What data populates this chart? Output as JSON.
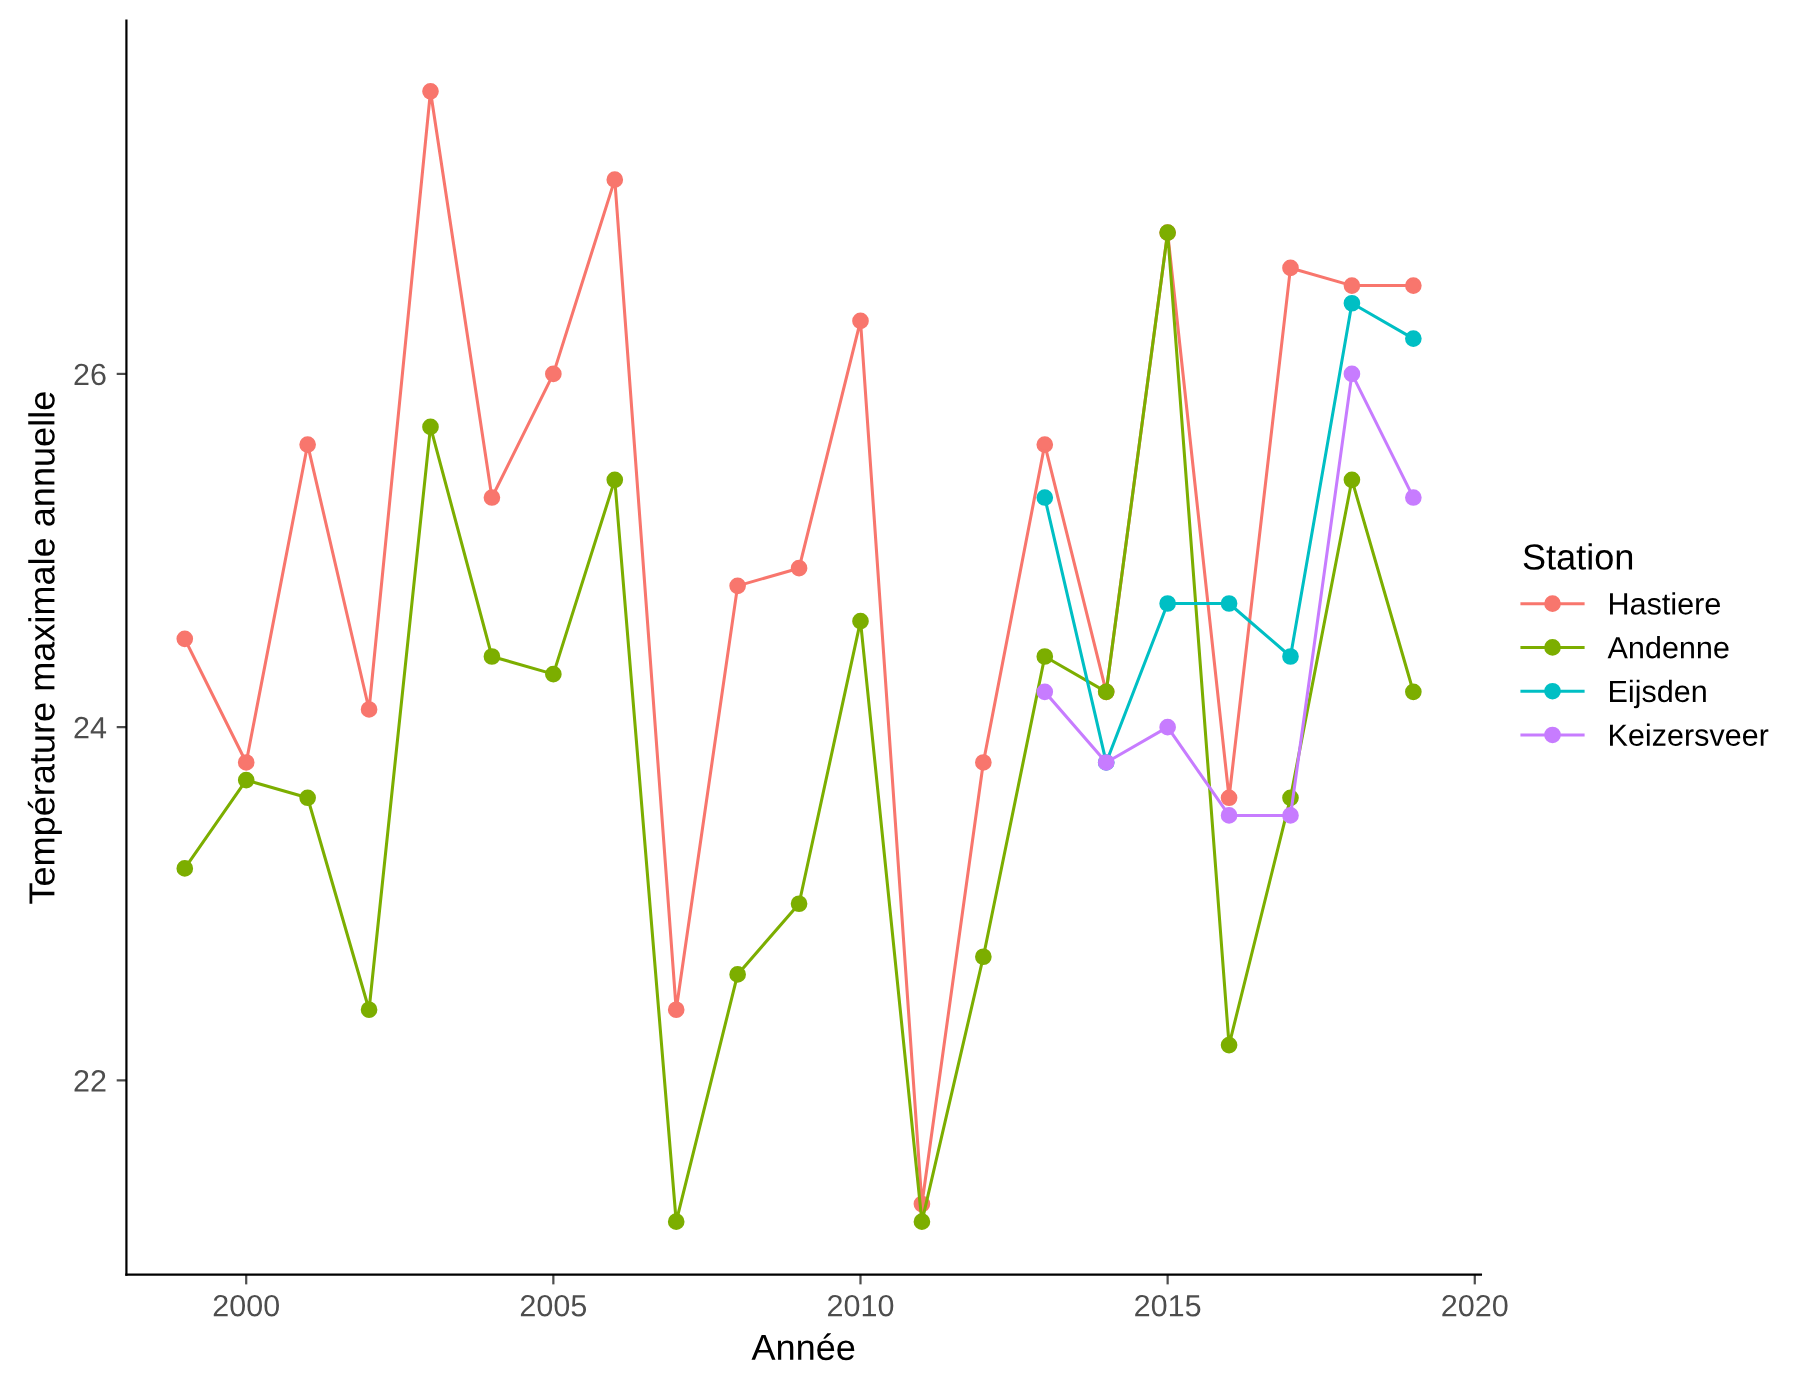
{
  "chart_data": {
    "type": "line",
    "xlabel": "Année",
    "ylabel": "Température maximale annuelle",
    "legend_title": "Station",
    "legend": "right",
    "marker": "circle",
    "line_style": "solid",
    "grid": false,
    "x": [
      1999,
      2000,
      2001,
      2002,
      2003,
      2004,
      2005,
      2006,
      2007,
      2008,
      2009,
      2010,
      2011,
      2012,
      2013,
      2014,
      2015,
      2016,
      2017,
      2018,
      2019
    ],
    "series": [
      {
        "name": "Hastiere",
        "color": "#f8766d",
        "values": [
          24.5,
          23.8,
          25.6,
          24.1,
          27.6,
          25.3,
          26.0,
          27.1,
          22.4,
          24.8,
          24.9,
          26.3,
          21.3,
          23.8,
          25.6,
          24.2,
          26.8,
          23.6,
          26.6,
          26.5,
          26.5
        ]
      },
      {
        "name": "Andenne",
        "color": "#7cae00",
        "values": [
          23.2,
          23.7,
          23.6,
          22.4,
          25.7,
          24.4,
          24.3,
          25.4,
          21.2,
          22.6,
          23.0,
          24.6,
          21.2,
          22.7,
          24.4,
          24.2,
          26.8,
          22.2,
          23.6,
          25.4,
          24.2
        ]
      },
      {
        "name": "Eijsden",
        "color": "#00bfc4",
        "values": [
          null,
          null,
          null,
          null,
          null,
          null,
          null,
          null,
          null,
          null,
          null,
          null,
          null,
          null,
          25.3,
          23.8,
          24.7,
          24.7,
          24.4,
          26.4,
          26.2
        ]
      },
      {
        "name": "Keizersveer",
        "color": "#c77cff",
        "values": [
          null,
          null,
          null,
          null,
          null,
          null,
          null,
          null,
          null,
          null,
          null,
          null,
          null,
          null,
          24.2,
          23.8,
          24.0,
          23.5,
          23.5,
          26.0,
          25.3
        ]
      }
    ],
    "xlim": [
      1998.05,
      2020.1
    ],
    "xticks": [
      2000,
      2005,
      2010,
      2015,
      2020
    ],
    "ylim": [
      20.9,
      28.0
    ],
    "yticks": [
      22,
      24,
      26
    ]
  }
}
